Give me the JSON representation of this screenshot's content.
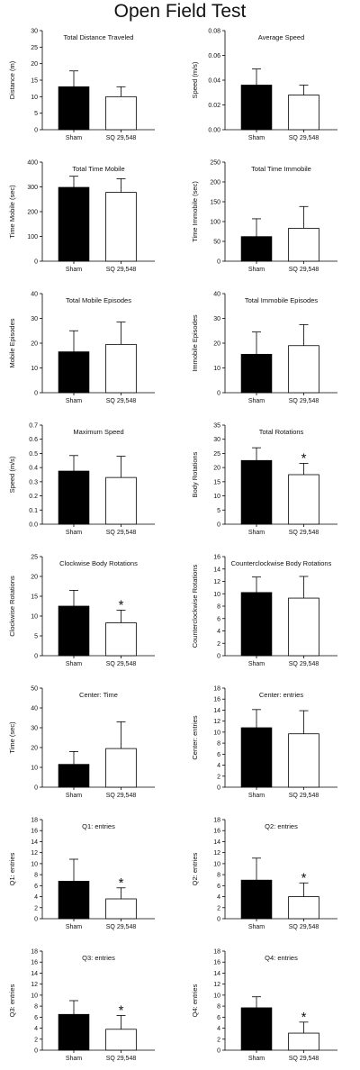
{
  "figure_title": "Open Field Test",
  "chart_data": [
    {
      "type": "bar",
      "title": "Total Distance Traveled",
      "ylabel": "Distance (m)",
      "categories": [
        "Sham",
        "SQ 29,548"
      ],
      "values": [
        13,
        10
      ],
      "errors": [
        4.8,
        3
      ],
      "ylim": [
        0,
        30
      ],
      "yticks": [
        0,
        5,
        10,
        15,
        20,
        25,
        30
      ],
      "tick_decimals": 0,
      "significant": [
        false,
        false
      ],
      "fills": [
        "#000000",
        "#ffffff"
      ]
    },
    {
      "type": "bar",
      "title": "Average Speed",
      "ylabel": "Speed (m/s)",
      "categories": [
        "Sham",
        "SQ 29,548"
      ],
      "values": [
        0.036,
        0.028
      ],
      "errors": [
        0.013,
        0.008
      ],
      "ylim": [
        0,
        0.08
      ],
      "yticks": [
        0,
        0.02,
        0.04,
        0.06,
        0.08
      ],
      "tick_decimals": 2,
      "significant": [
        false,
        false
      ],
      "fills": [
        "#000000",
        "#ffffff"
      ]
    },
    {
      "type": "bar",
      "title": "Total Time Mobile",
      "ylabel": "Time Mobile (sec)",
      "categories": [
        "Sham",
        "SQ 29,548"
      ],
      "values": [
        298,
        278
      ],
      "errors": [
        45,
        55
      ],
      "ylim": [
        0,
        400
      ],
      "yticks": [
        0,
        100,
        200,
        300,
        400
      ],
      "tick_decimals": 0,
      "significant": [
        false,
        false
      ],
      "fills": [
        "#000000",
        "#ffffff"
      ]
    },
    {
      "type": "bar",
      "title": "Total Time Immobile",
      "ylabel": "Time Immobile (sec)",
      "categories": [
        "Sham",
        "SQ 29,548"
      ],
      "values": [
        62,
        83
      ],
      "errors": [
        45,
        55
      ],
      "ylim": [
        0,
        250
      ],
      "yticks": [
        0,
        50,
        100,
        150,
        200,
        250
      ],
      "tick_decimals": 0,
      "significant": [
        false,
        false
      ],
      "fills": [
        "#000000",
        "#ffffff"
      ]
    },
    {
      "type": "bar",
      "title": "Total Mobile Episodes",
      "ylabel": "Mobile Episodes",
      "categories": [
        "Sham",
        "SQ 29,548"
      ],
      "values": [
        16.5,
        19.5
      ],
      "errors": [
        8.5,
        9
      ],
      "ylim": [
        0,
        40
      ],
      "yticks": [
        0,
        10,
        20,
        30,
        40
      ],
      "tick_decimals": 0,
      "significant": [
        false,
        false
      ],
      "fills": [
        "#000000",
        "#ffffff"
      ]
    },
    {
      "type": "bar",
      "title": "Total Immobile Episodes",
      "ylabel": "Immobile Episodes",
      "categories": [
        "Sham",
        "SQ 29,548"
      ],
      "values": [
        15.5,
        19
      ],
      "errors": [
        9,
        8.5
      ],
      "ylim": [
        0,
        40
      ],
      "yticks": [
        0,
        10,
        20,
        30,
        40
      ],
      "tick_decimals": 0,
      "significant": [
        false,
        false
      ],
      "fills": [
        "#000000",
        "#ffffff"
      ]
    },
    {
      "type": "bar",
      "title": "Maximum Speed",
      "ylabel": "Speed (m/s)",
      "categories": [
        "Sham",
        "SQ 29,548"
      ],
      "values": [
        0.375,
        0.33
      ],
      "errors": [
        0.11,
        0.15
      ],
      "ylim": [
        0,
        0.7
      ],
      "yticks": [
        0,
        0.1,
        0.2,
        0.3,
        0.4,
        0.5,
        0.6,
        0.7
      ],
      "tick_decimals": 1,
      "significant": [
        false,
        false
      ],
      "fills": [
        "#000000",
        "#ffffff"
      ]
    },
    {
      "type": "bar",
      "title": "Total Rotations",
      "ylabel": "Body Rotations",
      "categories": [
        "Sham",
        "SQ 29,548"
      ],
      "values": [
        22.5,
        17.5
      ],
      "errors": [
        4.5,
        4
      ],
      "ylim": [
        0,
        35
      ],
      "yticks": [
        0,
        5,
        10,
        15,
        20,
        25,
        30,
        35
      ],
      "tick_decimals": 0,
      "significant": [
        false,
        true
      ],
      "fills": [
        "#000000",
        "#ffffff"
      ]
    },
    {
      "type": "bar",
      "title": "Clockwise Body Rotations",
      "ylabel": "Clockwise Rotations",
      "categories": [
        "Sham",
        "SQ 29,548"
      ],
      "values": [
        12.5,
        8.3
      ],
      "errors": [
        4,
        3.2
      ],
      "ylim": [
        0,
        25
      ],
      "yticks": [
        0,
        5,
        10,
        15,
        20,
        25
      ],
      "tick_decimals": 0,
      "significant": [
        false,
        true
      ],
      "fills": [
        "#000000",
        "#ffffff"
      ]
    },
    {
      "type": "bar",
      "title": "Counterclockwise Body Rotations",
      "ylabel": "Counterclockwise Rotations",
      "categories": [
        "Sham",
        "SQ 29,548"
      ],
      "values": [
        10.2,
        9.3
      ],
      "errors": [
        2.5,
        3.5
      ],
      "ylim": [
        0,
        16
      ],
      "yticks": [
        0,
        2,
        4,
        6,
        8,
        10,
        12,
        14,
        16
      ],
      "tick_decimals": 0,
      "significant": [
        false,
        false
      ],
      "fills": [
        "#000000",
        "#ffffff"
      ]
    },
    {
      "type": "bar",
      "title": "Center: Time",
      "ylabel": "Time (sec)",
      "categories": [
        "Sham",
        "SQ 29,548"
      ],
      "values": [
        11.5,
        19.5
      ],
      "errors": [
        6.5,
        13.5
      ],
      "ylim": [
        0,
        50
      ],
      "yticks": [
        0,
        10,
        20,
        30,
        40,
        50
      ],
      "tick_decimals": 0,
      "significant": [
        false,
        false
      ],
      "fills": [
        "#000000",
        "#ffffff"
      ]
    },
    {
      "type": "bar",
      "title": "Center: entries",
      "ylabel": "Center: entries",
      "categories": [
        "Sham",
        "SQ 29,548"
      ],
      "values": [
        10.8,
        9.7
      ],
      "errors": [
        3.3,
        4.2
      ],
      "ylim": [
        0,
        18
      ],
      "yticks": [
        0,
        2,
        4,
        6,
        8,
        10,
        12,
        14,
        16,
        18
      ],
      "tick_decimals": 0,
      "significant": [
        false,
        false
      ],
      "fills": [
        "#000000",
        "#ffffff"
      ]
    },
    {
      "type": "bar",
      "title": "Q1: entries",
      "ylabel": "Q1: entries",
      "categories": [
        "Sham",
        "SQ 29,548"
      ],
      "values": [
        6.8,
        3.6
      ],
      "errors": [
        4,
        2
      ],
      "ylim": [
        0,
        18
      ],
      "yticks": [
        0,
        2,
        4,
        6,
        8,
        10,
        12,
        14,
        16,
        18
      ],
      "tick_decimals": 0,
      "significant": [
        false,
        true
      ],
      "fills": [
        "#000000",
        "#ffffff"
      ]
    },
    {
      "type": "bar",
      "title": "Q2: entries",
      "ylabel": "Q2: entries",
      "categories": [
        "Sham",
        "SQ 29,548"
      ],
      "values": [
        7,
        4
      ],
      "errors": [
        4,
        2.5
      ],
      "ylim": [
        0,
        18
      ],
      "yticks": [
        0,
        2,
        4,
        6,
        8,
        10,
        12,
        14,
        16,
        18
      ],
      "tick_decimals": 0,
      "significant": [
        false,
        true
      ],
      "fills": [
        "#000000",
        "#ffffff"
      ]
    },
    {
      "type": "bar",
      "title": "Q3: entries",
      "ylabel": "Q3: entries",
      "categories": [
        "Sham",
        "SQ 29,548"
      ],
      "values": [
        6.5,
        3.8
      ],
      "errors": [
        2.5,
        2.5
      ],
      "ylim": [
        0,
        18
      ],
      "yticks": [
        0,
        2,
        4,
        6,
        8,
        10,
        12,
        14,
        16,
        18
      ],
      "tick_decimals": 0,
      "significant": [
        false,
        true
      ],
      "fills": [
        "#000000",
        "#ffffff"
      ]
    },
    {
      "type": "bar",
      "title": "Q4: entries",
      "ylabel": "Q4: entries",
      "categories": [
        "Sham",
        "SQ 29,548"
      ],
      "values": [
        7.7,
        3.1
      ],
      "errors": [
        2,
        2
      ],
      "ylim": [
        0,
        18
      ],
      "yticks": [
        0,
        2,
        4,
        6,
        8,
        10,
        12,
        14,
        16,
        18
      ],
      "tick_decimals": 0,
      "significant": [
        false,
        true
      ],
      "fills": [
        "#000000",
        "#ffffff"
      ]
    }
  ]
}
